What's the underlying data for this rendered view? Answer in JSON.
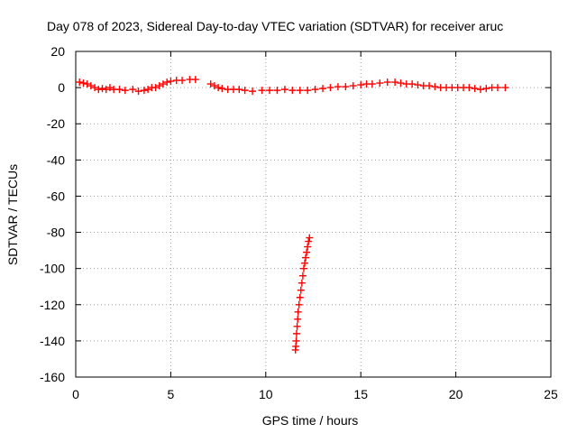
{
  "chart_data": {
    "type": "scatter",
    "title": "Day 078 of 2023, Sidereal Day-to-day VTEC variation (SDTVAR) for receiver aruc",
    "xlabel": "GPS time / hours",
    "ylabel": "SDTVAR / TECUs",
    "xlim": [
      0,
      25
    ],
    "ylim": [
      -160,
      20
    ],
    "xticks": [
      0,
      5,
      10,
      15,
      20,
      25
    ],
    "yticks": [
      20,
      0,
      -20,
      -40,
      -60,
      -80,
      -100,
      -120,
      -140,
      -160
    ],
    "grid": true,
    "marker": "plus",
    "color": "#ff0000",
    "series": [
      {
        "name": "SDTVAR",
        "points": [
          [
            0.2,
            3
          ],
          [
            0.4,
            2.5
          ],
          [
            0.6,
            2
          ],
          [
            0.8,
            1
          ],
          [
            1.0,
            0
          ],
          [
            1.2,
            -1
          ],
          [
            1.4,
            -0.5
          ],
          [
            1.6,
            -1
          ],
          [
            1.8,
            0
          ],
          [
            2.0,
            -1
          ],
          [
            2.3,
            -1
          ],
          [
            2.6,
            -1.5
          ],
          [
            3.0,
            -1
          ],
          [
            3.3,
            -2
          ],
          [
            3.6,
            -1.5
          ],
          [
            3.8,
            -1
          ],
          [
            4.0,
            0
          ],
          [
            4.2,
            0
          ],
          [
            4.4,
            1
          ],
          [
            4.6,
            2
          ],
          [
            4.8,
            3
          ],
          [
            5.0,
            3.5
          ],
          [
            5.3,
            4
          ],
          [
            5.6,
            4
          ],
          [
            6.0,
            4.5
          ],
          [
            6.3,
            4.5
          ],
          [
            7.1,
            2
          ],
          [
            7.3,
            1
          ],
          [
            7.5,
            0
          ],
          [
            7.7,
            -0.5
          ],
          [
            8.0,
            -1
          ],
          [
            8.3,
            -1
          ],
          [
            8.6,
            -1
          ],
          [
            8.9,
            -1.5
          ],
          [
            9.3,
            -2
          ],
          [
            9.8,
            -1.5
          ],
          [
            10.2,
            -1.5
          ],
          [
            10.6,
            -1.5
          ],
          [
            11.0,
            -1
          ],
          [
            11.4,
            -1.5
          ],
          [
            11.8,
            -1.5
          ],
          [
            12.2,
            -1.5
          ],
          [
            12.6,
            -1
          ],
          [
            13.0,
            -0.5
          ],
          [
            13.4,
            0
          ],
          [
            13.8,
            0.5
          ],
          [
            14.2,
            0.5
          ],
          [
            14.6,
            1
          ],
          [
            15.0,
            1.5
          ],
          [
            15.3,
            2
          ],
          [
            15.6,
            2
          ],
          [
            16.0,
            2.5
          ],
          [
            16.4,
            3
          ],
          [
            16.8,
            3
          ],
          [
            17.1,
            2.5
          ],
          [
            17.4,
            2
          ],
          [
            17.7,
            2
          ],
          [
            18.0,
            1.5
          ],
          [
            18.3,
            1
          ],
          [
            18.6,
            1
          ],
          [
            18.9,
            0.5
          ],
          [
            19.2,
            0
          ],
          [
            19.5,
            0
          ],
          [
            19.8,
            0
          ],
          [
            20.1,
            0
          ],
          [
            20.4,
            0
          ],
          [
            20.7,
            0
          ],
          [
            21.0,
            -0.5
          ],
          [
            21.3,
            -1
          ],
          [
            21.6,
            -0.5
          ],
          [
            21.9,
            0
          ],
          [
            22.2,
            0
          ],
          [
            22.6,
            0
          ],
          [
            12.3,
            -83
          ],
          [
            12.25,
            -85
          ],
          [
            12.2,
            -88
          ],
          [
            12.15,
            -91
          ],
          [
            12.1,
            -94
          ],
          [
            12.05,
            -97
          ],
          [
            12.0,
            -100
          ],
          [
            11.95,
            -104
          ],
          [
            11.9,
            -108
          ],
          [
            11.85,
            -112
          ],
          [
            11.8,
            -116
          ],
          [
            11.75,
            -120
          ],
          [
            11.7,
            -124
          ],
          [
            11.68,
            -128
          ],
          [
            11.65,
            -132
          ],
          [
            11.62,
            -136
          ],
          [
            11.6,
            -140
          ],
          [
            11.58,
            -143
          ],
          [
            11.56,
            -145
          ]
        ]
      }
    ]
  }
}
